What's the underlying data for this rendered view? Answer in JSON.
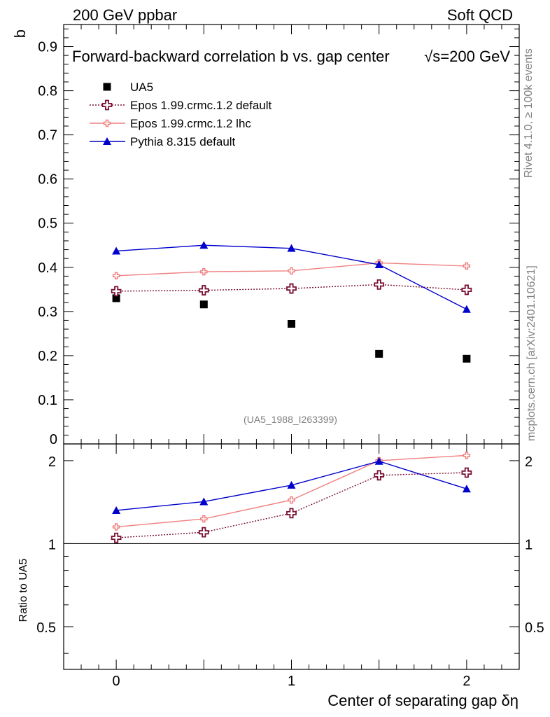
{
  "chart_data": {
    "type": "line",
    "title": "Forward-backward correlation b  vs. gap center",
    "title_energy": "√s=200 GeV",
    "header_left": "200 GeV ppbar",
    "header_right": "Soft QCD",
    "side_label_top": "Rivet 4.1.0, ≥ 100k events",
    "side_label_bottom": "mcplots.cern.ch [arXiv:2401.10621]",
    "analysis_id": "(UA5_1988_I263399)",
    "xlabel": "Center of separating gap δη",
    "ylabel": "b",
    "ratio_ylabel": "Ratio to UA5",
    "xlim": [
      -0.3,
      2.3
    ],
    "ylim": [
      0,
      0.95
    ],
    "ratio_ylim": [
      0.35,
      2.3
    ],
    "x_ticks": [
      "0",
      "1",
      "2"
    ],
    "y_ticks": [
      "0.9",
      "0.8",
      "0.7",
      "0.6",
      "0.5",
      "0.4",
      "0.3",
      "0.2",
      "0.1",
      "0"
    ],
    "ratio_ticks": [
      "2",
      "1",
      "0.5"
    ],
    "x": [
      0,
      0.5,
      1,
      1.5,
      2
    ],
    "series": [
      {
        "name": "UA5",
        "style": "data",
        "color": "#000000",
        "values": [
          0.33,
          0.316,
          0.272,
          0.204,
          0.193
        ],
        "ratio": [
          1,
          1,
          1,
          1,
          1
        ]
      },
      {
        "name": "Epos 1.99.crmc.1.2 default",
        "style": "open-cross-dotted",
        "color": "#7a1032",
        "values": [
          0.346,
          0.348,
          0.352,
          0.361,
          0.349
        ],
        "ratio": [
          1.05,
          1.1,
          1.29,
          1.77,
          1.81
        ]
      },
      {
        "name": "Epos 1.99.crmc.1.2 lhc",
        "style": "cross-solid",
        "color": "#f08080",
        "values": [
          0.381,
          0.39,
          0.392,
          0.41,
          0.403
        ],
        "ratio": [
          1.15,
          1.23,
          1.44,
          2.0,
          2.09
        ]
      },
      {
        "name": "Pythia 8.315 default",
        "style": "triangle-solid",
        "color": "#0000cc",
        "values": [
          0.437,
          0.45,
          0.443,
          0.406,
          0.305
        ],
        "ratio": [
          1.32,
          1.42,
          1.63,
          1.99,
          1.58
        ]
      }
    ]
  }
}
